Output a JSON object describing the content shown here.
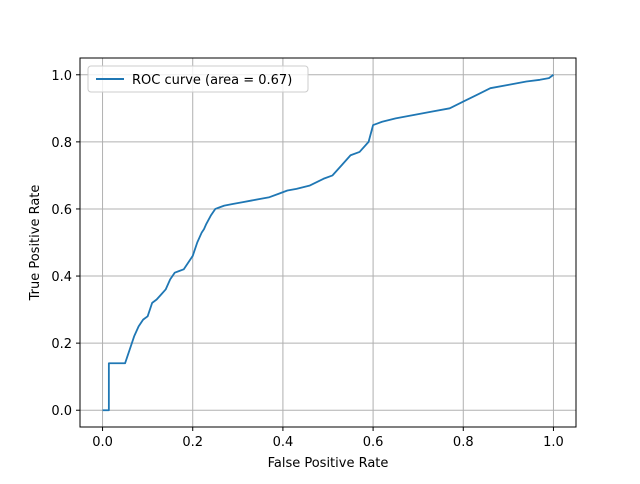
{
  "chart_data": {
    "type": "line",
    "title": "",
    "xlabel": "False Positive Rate",
    "ylabel": "True Positive Rate",
    "xlim": [
      -0.05,
      1.05
    ],
    "ylim": [
      -0.05,
      1.05
    ],
    "xticks": [
      0.0,
      0.2,
      0.4,
      0.6,
      0.8,
      1.0
    ],
    "yticks": [
      0.0,
      0.2,
      0.4,
      0.6,
      0.8,
      1.0
    ],
    "xtick_labels": [
      "0.0",
      "0.2",
      "0.4",
      "0.6",
      "0.8",
      "1.0"
    ],
    "ytick_labels": [
      "0.0",
      "0.2",
      "0.4",
      "0.6",
      "0.8",
      "1.0"
    ],
    "grid": true,
    "legend_position": "upper-left",
    "series": [
      {
        "name": "ROC curve (area = 0.67)",
        "color": "#1f77b4",
        "x": [
          0.0,
          0.014,
          0.014,
          0.05,
          0.06,
          0.07,
          0.08,
          0.09,
          0.1,
          0.11,
          0.12,
          0.13,
          0.14,
          0.15,
          0.16,
          0.17,
          0.18,
          0.19,
          0.2,
          0.21,
          0.22,
          0.225,
          0.23,
          0.24,
          0.25,
          0.26,
          0.27,
          0.29,
          0.31,
          0.33,
          0.35,
          0.37,
          0.39,
          0.41,
          0.43,
          0.46,
          0.49,
          0.51,
          0.53,
          0.55,
          0.57,
          0.59,
          0.6,
          0.61,
          0.62,
          0.65,
          0.69,
          0.73,
          0.77,
          0.8,
          0.83,
          0.86,
          0.9,
          0.94,
          0.97,
          0.99,
          1.0
        ],
        "y": [
          0.0,
          0.0,
          0.14,
          0.14,
          0.18,
          0.22,
          0.25,
          0.27,
          0.28,
          0.32,
          0.33,
          0.345,
          0.36,
          0.39,
          0.41,
          0.415,
          0.42,
          0.44,
          0.46,
          0.5,
          0.53,
          0.54,
          0.555,
          0.58,
          0.6,
          0.605,
          0.61,
          0.615,
          0.62,
          0.625,
          0.63,
          0.635,
          0.645,
          0.655,
          0.66,
          0.67,
          0.69,
          0.7,
          0.73,
          0.76,
          0.77,
          0.8,
          0.85,
          0.855,
          0.86,
          0.87,
          0.88,
          0.89,
          0.9,
          0.92,
          0.94,
          0.96,
          0.97,
          0.98,
          0.985,
          0.99,
          1.0
        ]
      }
    ]
  }
}
